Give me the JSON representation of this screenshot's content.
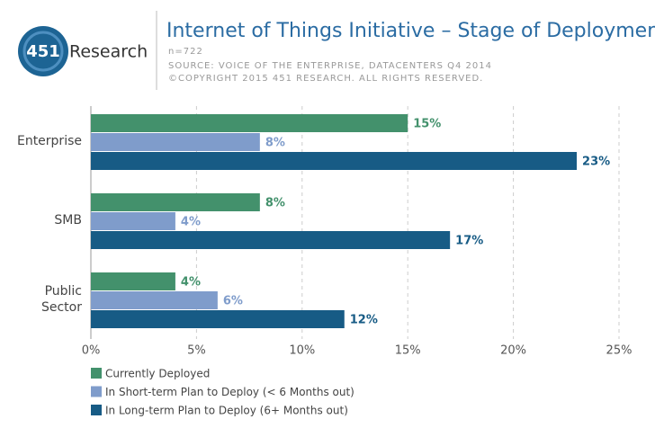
{
  "logo": {
    "number": "451",
    "name": "Research"
  },
  "chart_data": {
    "type": "hbar",
    "title": "Internet of Things Initiative – Stage of Deployment",
    "subtitle": "n=722",
    "source": "SOURCE: VOICE OF THE ENTERPRISE, DATACENTERS Q4 2014",
    "copyright": "©COPYRIGHT 2015 451 RESEARCH. ALL RIGHTS RESERVED.",
    "categories": [
      "Enterprise",
      "SMB",
      "Public Sector"
    ],
    "series": [
      {
        "name": "Currently Deployed",
        "color": "#43916c",
        "values": [
          15,
          8,
          4
        ],
        "value_labels": [
          "15%",
          "8%",
          "4%"
        ]
      },
      {
        "name": "In Short-term Plan to Deploy (< 6 Months out)",
        "color": "#7f9ccb",
        "values": [
          8,
          4,
          6
        ],
        "value_labels": [
          "8%",
          "4%",
          "6%"
        ]
      },
      {
        "name": "In Long-term Plan to Deploy (6+ Months out)",
        "color": "#175b85",
        "values": [
          23,
          17,
          12
        ],
        "value_labels": [
          "23%",
          "17%",
          "12%"
        ]
      }
    ],
    "xlim": [
      0,
      25
    ],
    "xticks": [
      {
        "value": 0,
        "label": "0%"
      },
      {
        "value": 5,
        "label": "5%"
      },
      {
        "value": 10,
        "label": "10%"
      },
      {
        "value": 15,
        "label": "15%"
      },
      {
        "value": 20,
        "label": "20%"
      },
      {
        "value": 25,
        "label": "25%"
      }
    ],
    "grid": true,
    "legend": "bottom-left"
  }
}
